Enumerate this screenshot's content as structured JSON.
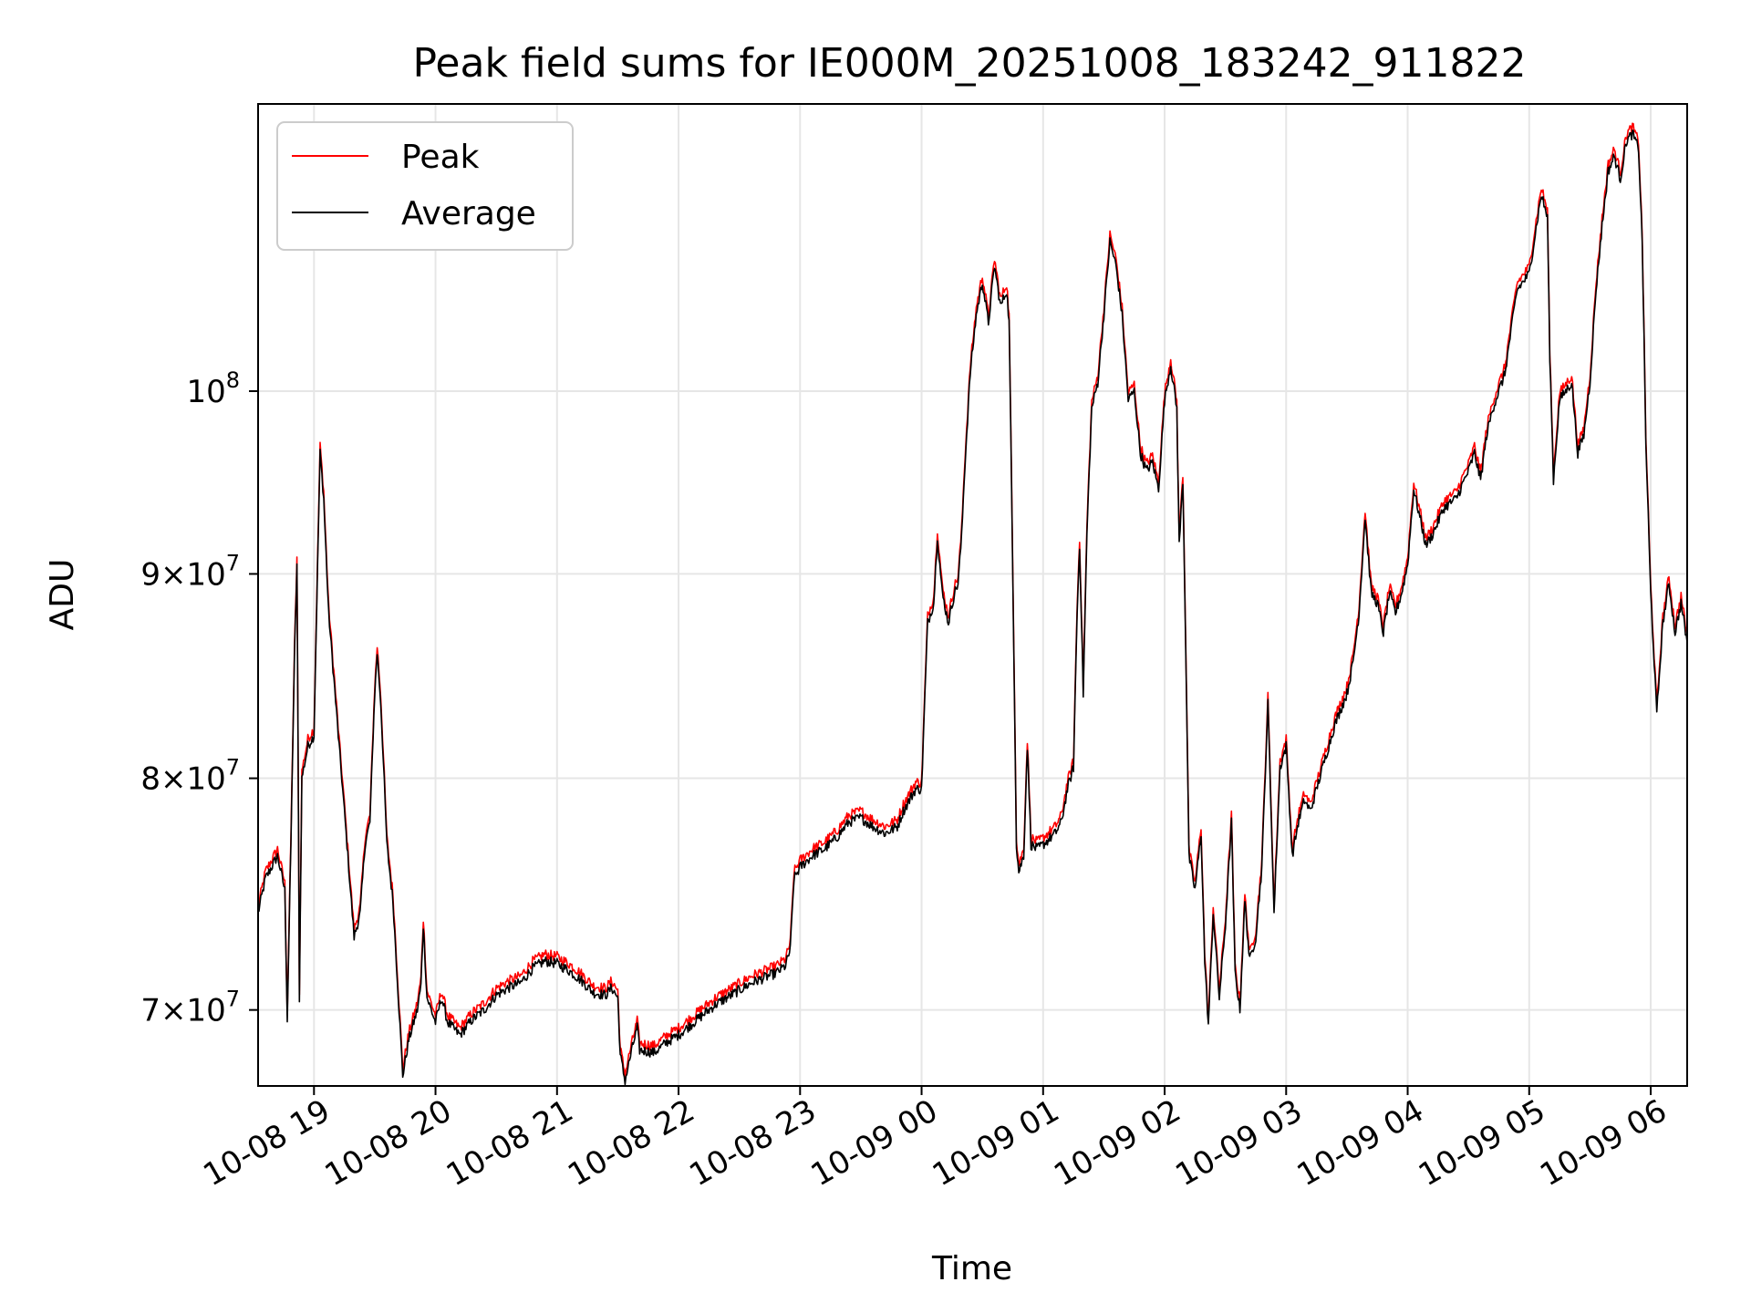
{
  "chart_data": {
    "type": "line",
    "title": "Peak field sums for IE000M_20251008_183242_911822",
    "xlabel": "Time",
    "ylabel": "ADU",
    "yscale": "log",
    "grid": true,
    "legend_position": "upper-left",
    "x_unit": "hours since 10-08 18:00",
    "xlim": [
      18.54,
      30.3
    ],
    "ylim": [
      67000000,
      118000000
    ],
    "x_ticks": [
      {
        "value": 19,
        "label": "10-08 19"
      },
      {
        "value": 20,
        "label": "10-08 20"
      },
      {
        "value": 21,
        "label": "10-08 21"
      },
      {
        "value": 22,
        "label": "10-08 22"
      },
      {
        "value": 23,
        "label": "10-08 23"
      },
      {
        "value": 24,
        "label": "10-09 00"
      },
      {
        "value": 25,
        "label": "10-09 01"
      },
      {
        "value": 26,
        "label": "10-09 02"
      },
      {
        "value": 27,
        "label": "10-09 03"
      },
      {
        "value": 28,
        "label": "10-09 04"
      },
      {
        "value": 29,
        "label": "10-09 05"
      },
      {
        "value": 30,
        "label": "10-09 06"
      }
    ],
    "y_ticks": [
      {
        "value": 70000000,
        "mantissa": "7",
        "base": "10",
        "exp": "7"
      },
      {
        "value": 80000000,
        "mantissa": "8",
        "base": "10",
        "exp": "7"
      },
      {
        "value": 90000000,
        "mantissa": "9",
        "base": "10",
        "exp": "7"
      },
      {
        "value": 100000000,
        "mantissa": "",
        "base": "10",
        "exp": "8"
      }
    ],
    "average_points": [
      [
        18.54,
        74.0
      ],
      [
        18.6,
        75.5
      ],
      [
        18.7,
        76.5
      ],
      [
        18.76,
        75.0
      ],
      [
        18.78,
        69.6
      ],
      [
        18.81,
        77.0
      ],
      [
        18.84,
        86.0
      ],
      [
        18.86,
        90.5
      ],
      [
        18.88,
        70.5
      ],
      [
        18.9,
        80.0
      ],
      [
        18.95,
        81.5
      ],
      [
        19.0,
        82.0
      ],
      [
        19.03,
        90.5
      ],
      [
        19.05,
        96.5
      ],
      [
        19.08,
        94.0
      ],
      [
        19.12,
        88.0
      ],
      [
        19.2,
        82.0
      ],
      [
        19.25,
        78.5
      ],
      [
        19.3,
        75.0
      ],
      [
        19.33,
        73.0
      ],
      [
        19.38,
        74.0
      ],
      [
        19.42,
        77.0
      ],
      [
        19.46,
        78.0
      ],
      [
        19.5,
        84.0
      ],
      [
        19.52,
        86.0
      ],
      [
        19.55,
        83.5
      ],
      [
        19.6,
        77.0
      ],
      [
        19.65,
        74.5
      ],
      [
        19.7,
        70.0
      ],
      [
        19.73,
        67.4
      ],
      [
        19.78,
        68.8
      ],
      [
        19.85,
        70.0
      ],
      [
        19.88,
        71.0
      ],
      [
        19.9,
        73.5
      ],
      [
        19.93,
        70.5
      ],
      [
        20.0,
        69.5
      ],
      [
        20.05,
        70.5
      ],
      [
        20.1,
        69.5
      ],
      [
        20.2,
        69.0
      ],
      [
        20.3,
        69.6
      ],
      [
        20.4,
        70.0
      ],
      [
        20.5,
        70.6
      ],
      [
        20.6,
        70.9
      ],
      [
        20.7,
        71.1
      ],
      [
        20.8,
        71.7
      ],
      [
        20.9,
        72.0
      ],
      [
        21.0,
        71.9
      ],
      [
        21.1,
        71.6
      ],
      [
        21.2,
        71.2
      ],
      [
        21.3,
        70.7
      ],
      [
        21.4,
        70.6
      ],
      [
        21.45,
        70.9
      ],
      [
        21.5,
        70.5
      ],
      [
        21.52,
        68.2
      ],
      [
        21.56,
        67.2
      ],
      [
        21.62,
        68.5
      ],
      [
        21.66,
        69.3
      ],
      [
        21.68,
        68.4
      ],
      [
        21.8,
        68.3
      ],
      [
        21.9,
        68.7
      ],
      [
        22.0,
        69.0
      ],
      [
        22.1,
        69.4
      ],
      [
        22.2,
        69.8
      ],
      [
        22.3,
        70.2
      ],
      [
        22.4,
        70.5
      ],
      [
        22.5,
        70.8
      ],
      [
        22.6,
        71.1
      ],
      [
        22.7,
        71.3
      ],
      [
        22.8,
        71.5
      ],
      [
        22.88,
        71.8
      ],
      [
        22.92,
        72.5
      ],
      [
        22.95,
        75.5
      ],
      [
        23.0,
        76.0
      ],
      [
        23.1,
        76.5
      ],
      [
        23.2,
        76.8
      ],
      [
        23.3,
        77.3
      ],
      [
        23.4,
        78.0
      ],
      [
        23.5,
        78.2
      ],
      [
        23.6,
        77.8
      ],
      [
        23.7,
        77.5
      ],
      [
        23.8,
        77.8
      ],
      [
        23.85,
        78.5
      ],
      [
        23.9,
        79.0
      ],
      [
        23.95,
        79.5
      ],
      [
        24.0,
        79.5
      ],
      [
        24.05,
        87.5
      ],
      [
        24.1,
        88.5
      ],
      [
        24.13,
        92.0
      ],
      [
        24.17,
        89.0
      ],
      [
        24.22,
        87.5
      ],
      [
        24.27,
        89.0
      ],
      [
        24.3,
        89.5
      ],
      [
        24.33,
        92.0
      ],
      [
        24.35,
        95.0
      ],
      [
        24.4,
        101.0
      ],
      [
        24.45,
        104.5
      ],
      [
        24.5,
        106.5
      ],
      [
        24.55,
        104.0
      ],
      [
        24.6,
        107.5
      ],
      [
        24.65,
        105.0
      ],
      [
        24.7,
        106.0
      ],
      [
        24.72,
        104.0
      ],
      [
        24.75,
        90.0
      ],
      [
        24.78,
        77.0
      ],
      [
        24.8,
        75.8
      ],
      [
        24.84,
        76.5
      ],
      [
        24.87,
        81.5
      ],
      [
        24.9,
        77.0
      ],
      [
        24.95,
        76.8
      ],
      [
        25.0,
        77.0
      ],
      [
        25.1,
        77.5
      ],
      [
        25.15,
        78.0
      ],
      [
        25.2,
        79.5
      ],
      [
        25.25,
        80.5
      ],
      [
        25.28,
        88.0
      ],
      [
        25.3,
        91.5
      ],
      [
        25.33,
        84.0
      ],
      [
        25.36,
        92.0
      ],
      [
        25.4,
        99.0
      ],
      [
        25.45,
        100.5
      ],
      [
        25.5,
        104.5
      ],
      [
        25.55,
        109.0
      ],
      [
        25.6,
        107.5
      ],
      [
        25.65,
        104.5
      ],
      [
        25.7,
        99.5
      ],
      [
        25.75,
        100.0
      ],
      [
        25.8,
        96.5
      ],
      [
        25.85,
        95.5
      ],
      [
        25.9,
        96.0
      ],
      [
        25.95,
        94.5
      ],
      [
        26.0,
        99.5
      ],
      [
        26.05,
        101.5
      ],
      [
        26.1,
        99.0
      ],
      [
        26.12,
        91.5
      ],
      [
        26.15,
        95.0
      ],
      [
        26.18,
        84.0
      ],
      [
        26.2,
        76.5
      ],
      [
        26.25,
        75.0
      ],
      [
        26.3,
        77.5
      ],
      [
        26.33,
        72.0
      ],
      [
        26.36,
        69.4
      ],
      [
        26.4,
        74.0
      ],
      [
        26.45,
        70.5
      ],
      [
        26.5,
        73.5
      ],
      [
        26.55,
        78.0
      ],
      [
        26.58,
        71.5
      ],
      [
        26.62,
        70.0
      ],
      [
        26.66,
        74.5
      ],
      [
        26.7,
        72.0
      ],
      [
        26.75,
        73.0
      ],
      [
        26.8,
        76.0
      ],
      [
        26.85,
        83.5
      ],
      [
        26.9,
        74.0
      ],
      [
        26.95,
        80.5
      ],
      [
        27.0,
        81.5
      ],
      [
        27.05,
        76.5
      ],
      [
        27.1,
        78.0
      ],
      [
        27.15,
        79.0
      ],
      [
        27.2,
        78.5
      ],
      [
        27.3,
        80.5
      ],
      [
        27.4,
        82.5
      ],
      [
        27.5,
        84.0
      ],
      [
        27.55,
        85.5
      ],
      [
        27.6,
        88.0
      ],
      [
        27.65,
        93.0
      ],
      [
        27.7,
        89.0
      ],
      [
        27.75,
        88.5
      ],
      [
        27.8,
        87.0
      ],
      [
        27.85,
        89.0
      ],
      [
        27.9,
        88.0
      ],
      [
        27.95,
        89.0
      ],
      [
        28.0,
        90.5
      ],
      [
        28.05,
        94.5
      ],
      [
        28.1,
        93.0
      ],
      [
        28.15,
        91.5
      ],
      [
        28.2,
        92.0
      ],
      [
        28.3,
        93.5
      ],
      [
        28.4,
        94.0
      ],
      [
        28.5,
        95.5
      ],
      [
        28.55,
        96.5
      ],
      [
        28.6,
        95.0
      ],
      [
        28.65,
        97.5
      ],
      [
        28.7,
        99.0
      ],
      [
        28.75,
        100.0
      ],
      [
        28.8,
        101.0
      ],
      [
        28.85,
        103.5
      ],
      [
        28.9,
        106.0
      ],
      [
        28.95,
        106.5
      ],
      [
        29.0,
        107.0
      ],
      [
        29.05,
        109.5
      ],
      [
        29.1,
        112.0
      ],
      [
        29.15,
        110.5
      ],
      [
        29.17,
        102.0
      ],
      [
        29.2,
        95.0
      ],
      [
        29.25,
        99.5
      ],
      [
        29.3,
        100.0
      ],
      [
        29.35,
        100.5
      ],
      [
        29.4,
        96.5
      ],
      [
        29.45,
        97.5
      ],
      [
        29.5,
        100.5
      ],
      [
        29.55,
        106.0
      ],
      [
        29.6,
        110.0
      ],
      [
        29.65,
        113.5
      ],
      [
        29.7,
        114.5
      ],
      [
        29.75,
        113.0
      ],
      [
        29.8,
        115.5
      ],
      [
        29.85,
        116.0
      ],
      [
        29.9,
        115.0
      ],
      [
        29.93,
        109.0
      ],
      [
        29.96,
        97.0
      ],
      [
        30.0,
        89.0
      ],
      [
        30.05,
        83.0
      ],
      [
        30.1,
        87.5
      ],
      [
        30.15,
        89.5
      ],
      [
        30.2,
        87.0
      ],
      [
        30.25,
        88.5
      ],
      [
        30.3,
        86.5
      ]
    ],
    "series": [
      {
        "name": "Peak",
        "color": "#ff0000",
        "ratio": 1.004
      },
      {
        "name": "Average",
        "color": "#000000",
        "ratio": 1.0
      }
    ]
  }
}
